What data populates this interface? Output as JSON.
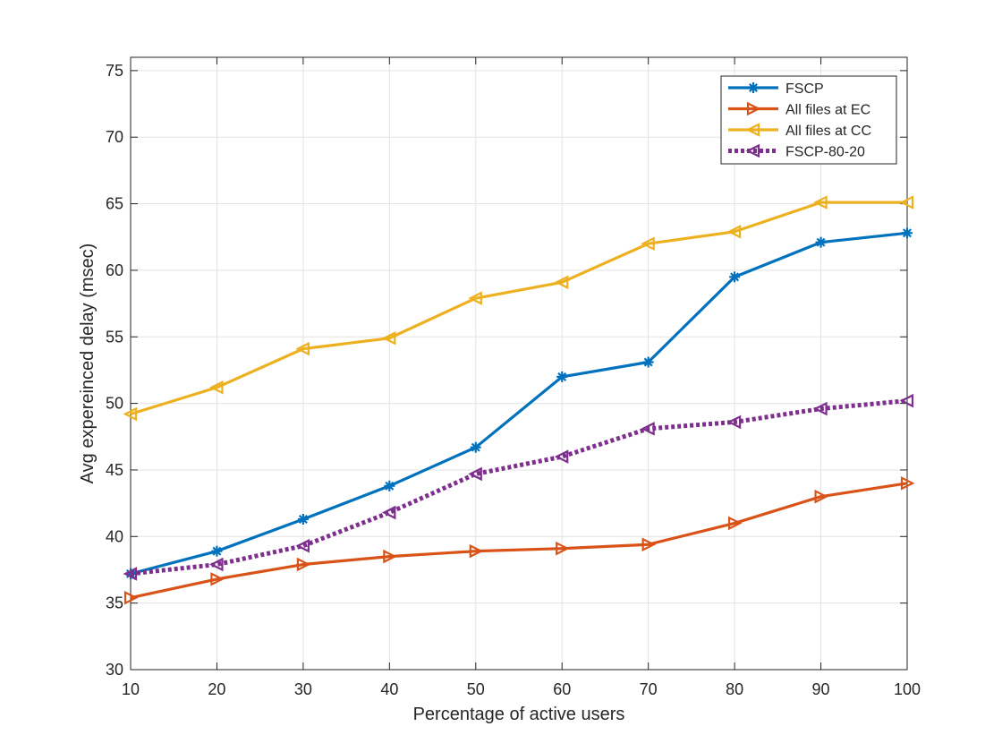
{
  "chart_data": {
    "type": "line",
    "xlabel": "Percentage of active users",
    "ylabel": "Avg expereinced delay (msec)",
    "x": [
      10,
      20,
      30,
      40,
      50,
      60,
      70,
      80,
      90,
      100
    ],
    "xlim": [
      10,
      100
    ],
    "ylim": [
      30,
      76
    ],
    "xticks": [
      "10",
      "20",
      "30",
      "40",
      "50",
      "60",
      "70",
      "80",
      "90",
      "100"
    ],
    "yticks": [
      "30",
      "35",
      "40",
      "45",
      "50",
      "55",
      "60",
      "65",
      "70",
      "75"
    ],
    "grid": true,
    "legend_position": "top-right",
    "series": [
      {
        "name": "FSCP",
        "color": "#0072BD",
        "marker": "asterisk",
        "dashed": false,
        "values": [
          37.2,
          38.9,
          41.3,
          43.8,
          46.7,
          52.0,
          53.1,
          59.5,
          62.1,
          62.8
        ]
      },
      {
        "name": "All files at EC",
        "color": "#D95319",
        "marker": "triangle-right",
        "dashed": false,
        "values": [
          35.4,
          36.8,
          37.9,
          38.5,
          38.9,
          39.1,
          39.4,
          41.0,
          43.0,
          44.0
        ]
      },
      {
        "name": "All files at CC",
        "color": "#EDB120",
        "marker": "triangle-left",
        "dashed": false,
        "values": [
          49.2,
          51.2,
          54.1,
          54.9,
          57.9,
          59.1,
          62.0,
          62.9,
          65.1,
          65.1
        ]
      },
      {
        "name": "FSCP-80-20",
        "color": "#7E2F8E",
        "marker": "triangle-left",
        "dashed": true,
        "values": [
          37.2,
          37.9,
          39.3,
          41.8,
          44.7,
          46.0,
          48.1,
          48.6,
          49.6,
          50.2
        ]
      }
    ]
  }
}
